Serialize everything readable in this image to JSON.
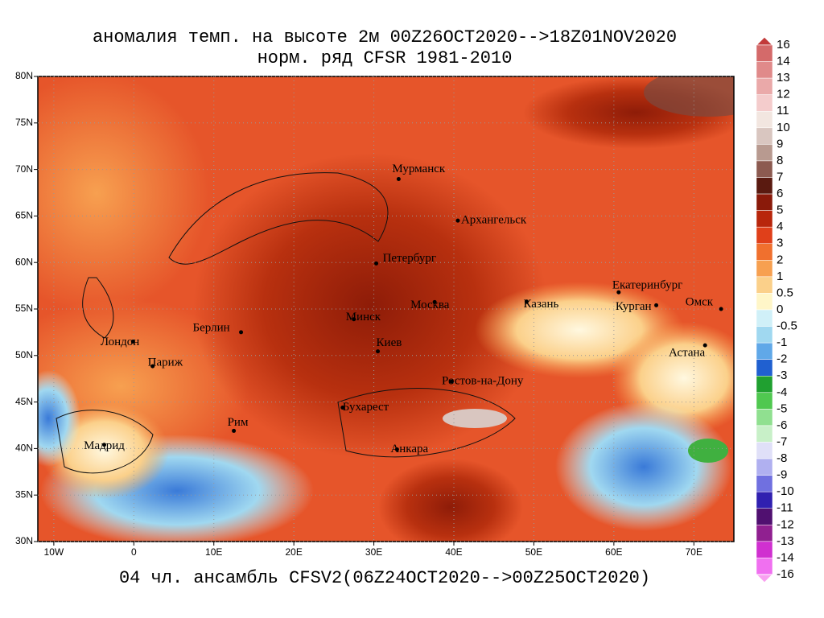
{
  "map": {
    "title": "аномалия темп. на высоте 2м 00Z26OCT2020-->18Z01NOV2020",
    "subtitle": "норм. ряд CFSR 1981-2010",
    "footer": "04 чл. ансамбль CFSV2(06Z24OCT2020-->00Z25OCT2020)",
    "lonlim": [
      -12,
      75
    ],
    "latlim": [
      30,
      80
    ],
    "lonticks": [
      {
        "value": -10,
        "label": "10W"
      },
      0,
      {
        "value": 10,
        "label": "10E"
      },
      {
        "value": 20,
        "label": "20E"
      },
      {
        "value": 30,
        "label": "30E"
      },
      {
        "value": 40,
        "label": "40E"
      },
      {
        "value": 50,
        "label": "50E"
      },
      {
        "value": 60,
        "label": "60E"
      },
      {
        "value": 70,
        "label": "70E"
      }
    ],
    "latticks": [
      {
        "value": 30,
        "label": "30N"
      },
      {
        "value": 35,
        "label": "35N"
      },
      {
        "value": 40,
        "label": "40N"
      },
      {
        "value": 45,
        "label": "45N"
      },
      {
        "value": 50,
        "label": "50N"
      },
      {
        "value": 55,
        "label": "55N"
      },
      {
        "value": 60,
        "label": "60N"
      },
      {
        "value": 65,
        "label": "65N"
      },
      {
        "value": 70,
        "label": "70N"
      },
      {
        "value": 75,
        "label": "75N"
      },
      {
        "value": 80,
        "label": "80N"
      }
    ],
    "grid": true,
    "cities": [
      {
        "name": "Мурманск",
        "lon": 33.1,
        "lat": 68.97
      },
      {
        "name": "Архангельск",
        "lon": 40.5,
        "lat": 64.5
      },
      {
        "name": "Петербург",
        "lon": 30.3,
        "lat": 59.9
      },
      {
        "name": "Москва",
        "lon": 37.6,
        "lat": 55.75
      },
      {
        "name": "Казань",
        "lon": 49.1,
        "lat": 55.8
      },
      {
        "name": "Екатеринбург",
        "lon": 60.6,
        "lat": 56.8
      },
      {
        "name": "Курган",
        "lon": 65.3,
        "lat": 55.4
      },
      {
        "name": "Омск",
        "lon": 73.4,
        "lat": 55.0
      },
      {
        "name": "Астана",
        "lon": 71.4,
        "lat": 51.1
      },
      {
        "name": "Минск",
        "lon": 27.5,
        "lat": 53.9
      },
      {
        "name": "Киев",
        "lon": 30.5,
        "lat": 50.45
      },
      {
        "name": "Лондон",
        "lon": -0.1,
        "lat": 51.5
      },
      {
        "name": "Париж",
        "lon": 2.35,
        "lat": 48.85
      },
      {
        "name": "Берлин",
        "lon": 13.4,
        "lat": 52.5
      },
      {
        "name": "Рим",
        "lon": 12.5,
        "lat": 41.9
      },
      {
        "name": "Мадрид",
        "lon": -3.7,
        "lat": 40.4
      },
      {
        "name": "Бухарест",
        "lon": 26.1,
        "lat": 44.4
      },
      {
        "name": "Анкара",
        "lon": 32.9,
        "lat": 39.9
      },
      {
        "name": "Ростов-на-Дону",
        "lon": 39.7,
        "lat": 47.2
      }
    ],
    "colorbar": {
      "levels": [
        16,
        14,
        13,
        12,
        11,
        10,
        9,
        8,
        7,
        6,
        5,
        4,
        3,
        2,
        1,
        0.5,
        0,
        -0.5,
        -1,
        -2,
        -3,
        -4,
        -5,
        -6,
        -7,
        -8,
        -9,
        -10,
        -11,
        -12,
        -13,
        -14,
        -16
      ],
      "colors": [
        "#c23a3a",
        "#d46a6a",
        "#e08a8a",
        "#eaa9a9",
        "#f4cccc",
        "#f2e6e0",
        "#d9c6c0",
        "#b89a90",
        "#8c5a50",
        "#5a1a10",
        "#8a1a0a",
        "#b8260c",
        "#e0401a",
        "#f0702e",
        "#f7a050",
        "#fbd08a",
        "#fff6c8",
        "#d0f0f8",
        "#a0d8f0",
        "#60a8e8",
        "#2060d0",
        "#20a030",
        "#50c850",
        "#90e090",
        "#c8f0c8",
        "#e0e0f8",
        "#b0b0f0",
        "#7070e0",
        "#3020b0",
        "#501070",
        "#902090",
        "#d030d0",
        "#f070f0",
        "#f8a0f0"
      ]
    }
  }
}
